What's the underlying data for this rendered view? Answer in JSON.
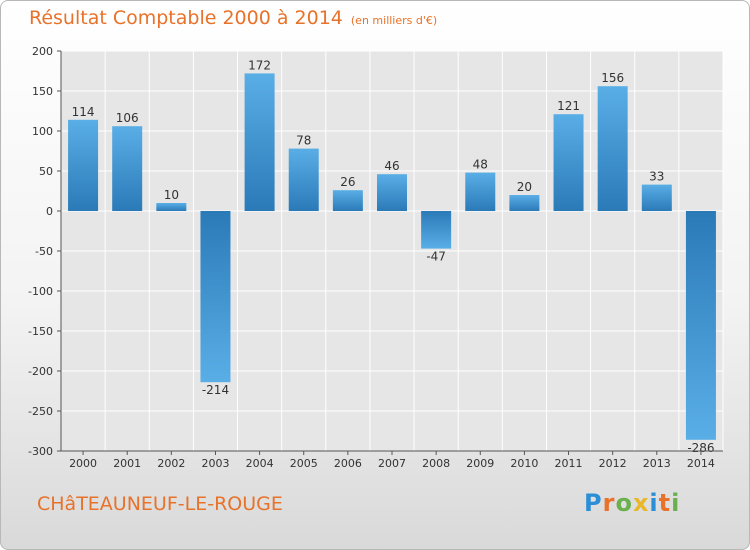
{
  "header": {
    "title": "Résultat Comptable 2000 à 2014",
    "subtitle": "(en milliers d'€)"
  },
  "footer": {
    "commune": "CHâTEAUNEUF-LE-ROUGE",
    "logo_letters": [
      "P",
      "r",
      "o",
      "x",
      "i",
      "t",
      "i"
    ],
    "logo_colors": [
      "#2a8fd6",
      "#e8722a",
      "#6ab04c",
      "#e8b82a",
      "#2a8fd6",
      "#e8722a",
      "#6ab04c"
    ]
  },
  "colors": {
    "bar_light": "#5aaee6",
    "bar_dark": "#2a7ab8",
    "axis_text": "#333333",
    "grid": "#ffffff",
    "accent": "#e8722a"
  },
  "chart_data": {
    "type": "bar",
    "title": "Résultat Comptable 2000 à 2014",
    "subtitle": "(en milliers d'€)",
    "categories": [
      "2000",
      "2001",
      "2002",
      "2003",
      "2004",
      "2005",
      "2006",
      "2007",
      "2008",
      "2009",
      "2010",
      "2011",
      "2012",
      "2013",
      "2014"
    ],
    "values": [
      114,
      106,
      10,
      -214,
      172,
      78,
      26,
      46,
      -47,
      48,
      20,
      121,
      156,
      33,
      -286
    ],
    "data_labels": [
      "114",
      "106",
      "10",
      "-214",
      "172",
      "78",
      "26",
      "46",
      "-47",
      "48",
      "20",
      "121",
      "156",
      "33",
      "-286"
    ],
    "ylim": [
      -300,
      200
    ],
    "yticks": [
      200,
      150,
      100,
      50,
      0,
      -50,
      -100,
      -150,
      -200,
      -250,
      -300
    ],
    "ytick_labels": [
      "200",
      "150",
      "100",
      "50",
      "0",
      "-50",
      "-100",
      "-150",
      "-200",
      "-250",
      "-300"
    ],
    "xlabel": "",
    "ylabel": "",
    "grid": true
  }
}
